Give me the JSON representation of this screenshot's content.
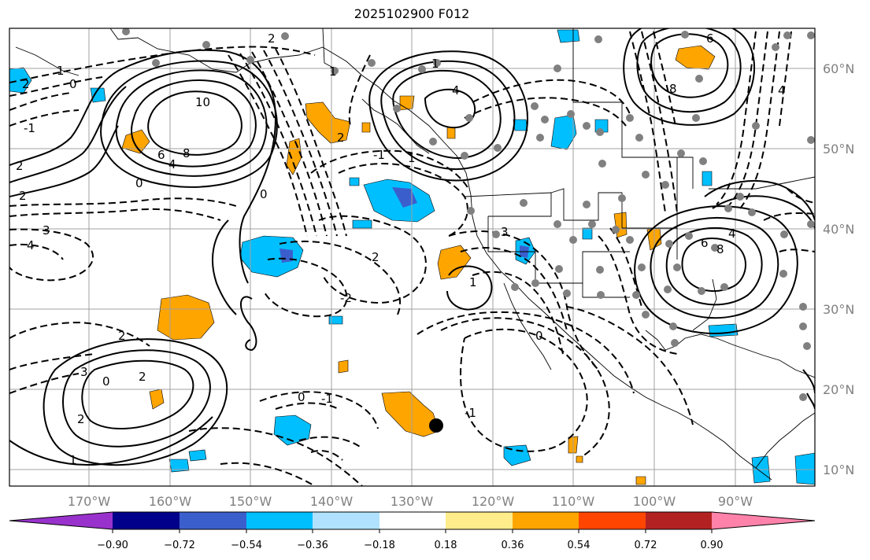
{
  "title": "2025102900 F012",
  "lat_labels": [
    "60°N",
    "50°N",
    "40°N",
    "30°N",
    "20°N",
    "10°N"
  ],
  "lon_labels": [
    "170°W",
    "160°W",
    "150°W",
    "140°W",
    "130°W",
    "120°W",
    "110°W",
    "100°W",
    "90°W"
  ],
  "colorbar": {
    "tick_labels": [
      "−0.90",
      "−0.72",
      "−0.54",
      "−0.36",
      "−0.18",
      "0.18",
      "0.36",
      "0.54",
      "0.72",
      "0.90"
    ],
    "colors": [
      "#9932cc",
      "#00008b",
      "#3a5fcd",
      "#00bfff",
      "#b0e2ff",
      "#ffffff",
      "#ffec8b",
      "#ffa500",
      "#ff4500",
      "#b22222",
      "#ff82ab"
    ]
  },
  "contour_labels": [
    "2",
    "1",
    "0",
    "-1",
    "2",
    "10",
    "8",
    "6",
    "4",
    "0",
    "4",
    "1",
    "1",
    "8",
    "6",
    "4",
    "2",
    "2",
    "3",
    "4",
    "2",
    "-2",
    "1",
    "0",
    "2",
    "-1",
    "1",
    "3",
    "6",
    "8",
    "4",
    "2",
    "3",
    "2",
    "2",
    "0",
    "0",
    "-1",
    "1",
    "0",
    "-1"
  ],
  "colors": {
    "shade_pos": "#ffa500",
    "shade_neg": "#00bfff",
    "shade_strong_neg": "#3a5fcd",
    "grid": "#a0a0a0",
    "station": "#808080"
  }
}
